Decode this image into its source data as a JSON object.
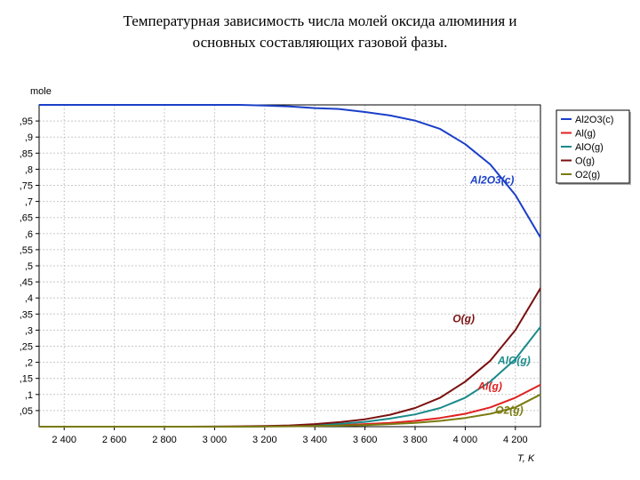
{
  "title": {
    "line1": "Температурная зависимость числа молей оксида алюминия и",
    "line2": "основных составляющих газовой фазы."
  },
  "chart_data": {
    "type": "line",
    "ylabel": "mole",
    "xlabel": "T, K",
    "xlim": [
      2300,
      4300
    ],
    "ylim": [
      0,
      1
    ],
    "grid": true,
    "legend_position": "top-right",
    "x_ticks": [
      2400,
      2600,
      2800,
      3000,
      3200,
      3400,
      3600,
      3800,
      4000,
      4200
    ],
    "x_tick_labels": [
      "2 400",
      "2 600",
      "2 800",
      "3 000",
      "3 200",
      "3 400",
      "3 600",
      "3 800",
      "4 000",
      "4 200"
    ],
    "y_ticks": [
      0.05,
      0.1,
      0.15,
      0.2,
      0.25,
      0.3,
      0.35,
      0.4,
      0.45,
      0.5,
      0.55,
      0.6,
      0.65,
      0.7,
      0.75,
      0.8,
      0.85,
      0.9,
      0.95
    ],
    "y_tick_labels": [
      ",05",
      ",1",
      ",15",
      ",2",
      ",25",
      ",3",
      ",35",
      ",4",
      ",45",
      ",5",
      ",55",
      ",6",
      ",65",
      ",7",
      ",75",
      ",8",
      ",85",
      ",9",
      ",95"
    ],
    "series": [
      {
        "name": "Al2O3(c)",
        "color": "#1a3fc8",
        "annotation": "Al2O3(c)",
        "x": [
          2300,
          2500,
          2700,
          2900,
          3100,
          3200,
          3300,
          3400,
          3500,
          3600,
          3700,
          3800,
          3900,
          4000,
          4100,
          4200,
          4300
        ],
        "y": [
          1.0,
          1.0,
          1.0,
          1.0,
          1.0,
          0.998,
          0.995,
          0.99,
          0.987,
          0.978,
          0.967,
          0.951,
          0.925,
          0.878,
          0.815,
          0.72,
          0.588
        ]
      },
      {
        "name": "Al(g)",
        "color": "#e02020",
        "annotation": "Al(g)",
        "x": [
          2300,
          2900,
          3100,
          3200,
          3300,
          3400,
          3500,
          3600,
          3700,
          3800,
          3900,
          4000,
          4100,
          4200,
          4300
        ],
        "y": [
          0.0,
          0.0,
          0.0,
          0.001,
          0.002,
          0.003,
          0.005,
          0.008,
          0.012,
          0.018,
          0.027,
          0.04,
          0.06,
          0.09,
          0.13
        ]
      },
      {
        "name": "AlO(g)",
        "color": "#1a8a8a",
        "annotation": "AlO(g)",
        "x": [
          2300,
          2900,
          3100,
          3200,
          3300,
          3400,
          3500,
          3600,
          3700,
          3800,
          3900,
          4000,
          4100,
          4200,
          4300
        ],
        "y": [
          0.0,
          0.0,
          0.0,
          0.001,
          0.003,
          0.005,
          0.009,
          0.015,
          0.025,
          0.038,
          0.058,
          0.09,
          0.14,
          0.21,
          0.31
        ]
      },
      {
        "name": "O(g)",
        "color": "#7a1010",
        "annotation": "O(g)",
        "x": [
          2300,
          2900,
          3100,
          3200,
          3300,
          3400,
          3500,
          3600,
          3700,
          3800,
          3900,
          4000,
          4100,
          4200,
          4300
        ],
        "y": [
          0.0,
          0.0,
          0.001,
          0.002,
          0.004,
          0.008,
          0.014,
          0.023,
          0.037,
          0.058,
          0.09,
          0.14,
          0.205,
          0.3,
          0.43
        ]
      },
      {
        "name": "O2(g)",
        "color": "#7a7a10",
        "annotation": "O2(g)",
        "x": [
          2300,
          2900,
          3100,
          3300,
          3400,
          3500,
          3600,
          3700,
          3800,
          3900,
          4000,
          4100,
          4200,
          4300
        ],
        "y": [
          0.0,
          0.0,
          0.0,
          0.001,
          0.002,
          0.003,
          0.005,
          0.008,
          0.012,
          0.018,
          0.027,
          0.04,
          0.06,
          0.1
        ]
      }
    ]
  }
}
